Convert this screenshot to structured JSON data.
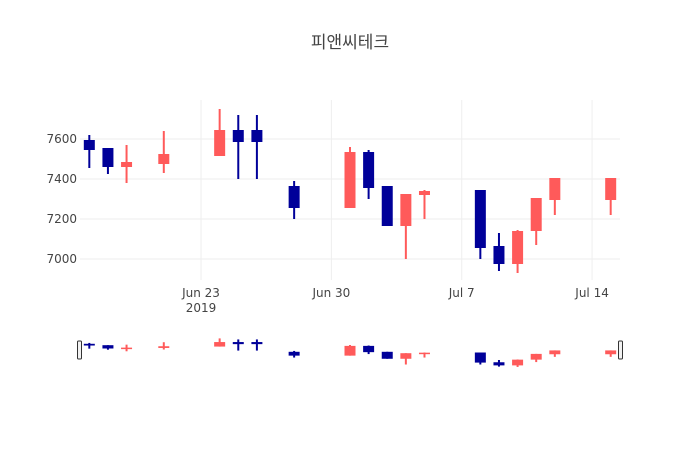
{
  "chart_data": {
    "type": "candlestick",
    "title": "피앤씨테크",
    "xlabel": "",
    "ylabel": "",
    "ylim": [
      6900,
      7790
    ],
    "yticks": [
      7000,
      7200,
      7400,
      7600
    ],
    "xticks": [
      {
        "date": "2019-06-23",
        "label": "Jun 23",
        "sublabel": "2019"
      },
      {
        "date": "2019-06-30",
        "label": "Jun 30",
        "sublabel": ""
      },
      {
        "date": "2019-07-07",
        "label": "Jul 7",
        "sublabel": ""
      },
      {
        "date": "2019-07-14",
        "label": "Jul 14",
        "sublabel": ""
      }
    ],
    "xrange": [
      "2019-06-16T12:00",
      "2019-07-15T12:00"
    ],
    "grid": true,
    "rangeslider": true,
    "increasing_color": "#FF5A5A",
    "decreasing_color": "#000099",
    "series": [
      {
        "date": "2019-06-17",
        "open": 7595,
        "high": 7620,
        "low": 7455,
        "close": 7545
      },
      {
        "date": "2019-06-18",
        "open": 7555,
        "high": 7555,
        "low": 7425,
        "close": 7460
      },
      {
        "date": "2019-06-19",
        "open": 7460,
        "high": 7570,
        "low": 7380,
        "close": 7485
      },
      {
        "date": "2019-06-21",
        "open": 7475,
        "high": 7640,
        "low": 7430,
        "close": 7525
      },
      {
        "date": "2019-06-24",
        "open": 7515,
        "high": 7750,
        "low": 7515,
        "close": 7645
      },
      {
        "date": "2019-06-25",
        "open": 7645,
        "high": 7720,
        "low": 7400,
        "close": 7585
      },
      {
        "date": "2019-06-26",
        "open": 7645,
        "high": 7720,
        "low": 7400,
        "close": 7585
      },
      {
        "date": "2019-06-28",
        "open": 7365,
        "high": 7390,
        "low": 7200,
        "close": 7255
      },
      {
        "date": "2019-07-01",
        "open": 7255,
        "high": 7560,
        "low": 7255,
        "close": 7535
      },
      {
        "date": "2019-07-02",
        "open": 7535,
        "high": 7545,
        "low": 7300,
        "close": 7355
      },
      {
        "date": "2019-07-03",
        "open": 7365,
        "high": 7365,
        "low": 7165,
        "close": 7165
      },
      {
        "date": "2019-07-04",
        "open": 7165,
        "high": 7325,
        "low": 7000,
        "close": 7325
      },
      {
        "date": "2019-07-05",
        "open": 7320,
        "high": 7345,
        "low": 7200,
        "close": 7340
      },
      {
        "date": "2019-07-08",
        "open": 7345,
        "high": 7345,
        "low": 7000,
        "close": 7055
      },
      {
        "date": "2019-07-09",
        "open": 7065,
        "high": 7130,
        "low": 6940,
        "close": 6975
      },
      {
        "date": "2019-07-10",
        "open": 6975,
        "high": 7145,
        "low": 6930,
        "close": 7140
      },
      {
        "date": "2019-07-11",
        "open": 7140,
        "high": 7305,
        "low": 7070,
        "close": 7305
      },
      {
        "date": "2019-07-12",
        "open": 7295,
        "high": 7405,
        "low": 7220,
        "close": 7405
      },
      {
        "date": "2019-07-15",
        "open": 7295,
        "high": 7405,
        "low": 7220,
        "close": 7405
      }
    ]
  }
}
